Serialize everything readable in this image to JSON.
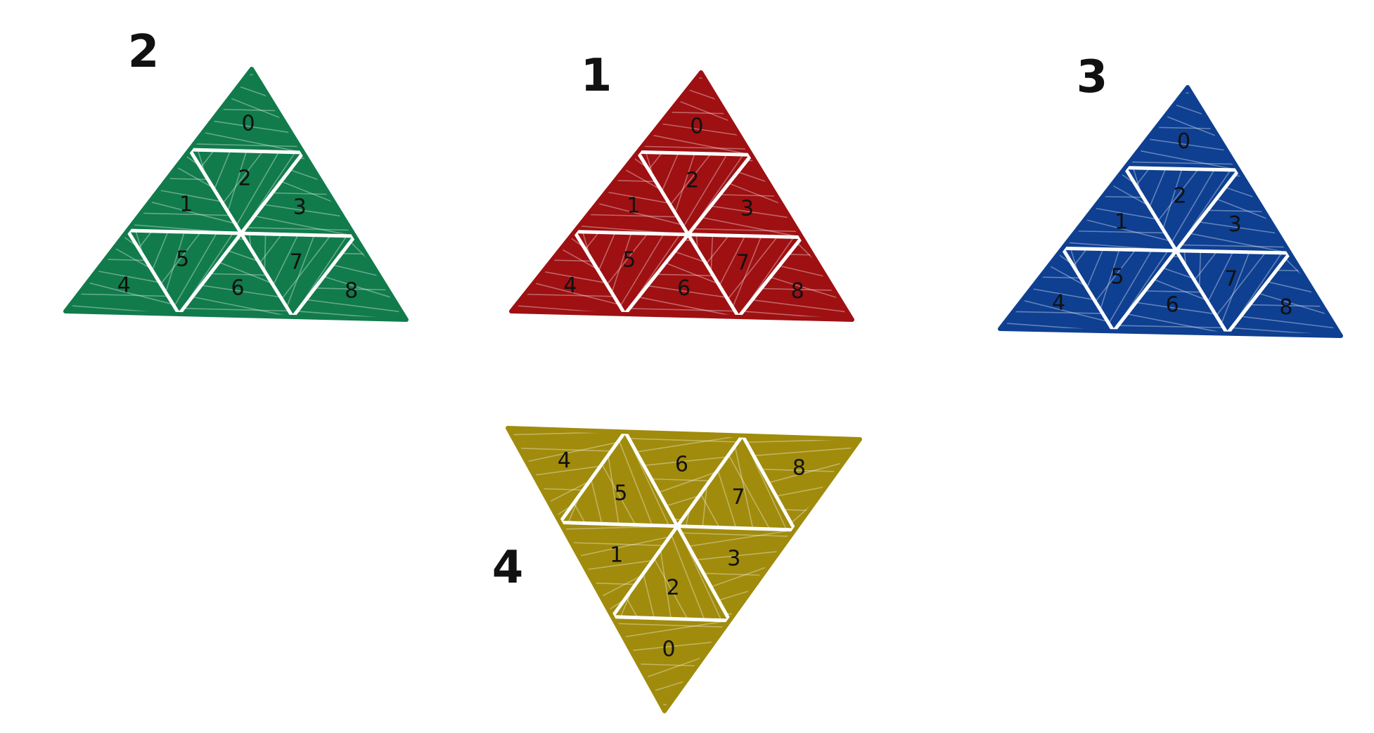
{
  "faces": [
    {
      "id": "green-face",
      "label": "2",
      "color": "#117b4b",
      "orientation": "up",
      "cells": [
        "0",
        "1",
        "2",
        "3",
        "4",
        "5",
        "6",
        "7",
        "8"
      ]
    },
    {
      "id": "red-face",
      "label": "1",
      "color": "#9e1012",
      "orientation": "up",
      "cells": [
        "0",
        "1",
        "2",
        "3",
        "4",
        "5",
        "6",
        "7",
        "8"
      ]
    },
    {
      "id": "blue-face",
      "label": "3",
      "color": "#0e3f91",
      "orientation": "up",
      "cells": [
        "0",
        "1",
        "2",
        "3",
        "4",
        "5",
        "6",
        "7",
        "8"
      ]
    },
    {
      "id": "yellow-face",
      "label": "4",
      "color": "#a08b0c",
      "orientation": "down",
      "cells": [
        "0",
        "1",
        "2",
        "3",
        "4",
        "5",
        "6",
        "7",
        "8"
      ]
    }
  ]
}
